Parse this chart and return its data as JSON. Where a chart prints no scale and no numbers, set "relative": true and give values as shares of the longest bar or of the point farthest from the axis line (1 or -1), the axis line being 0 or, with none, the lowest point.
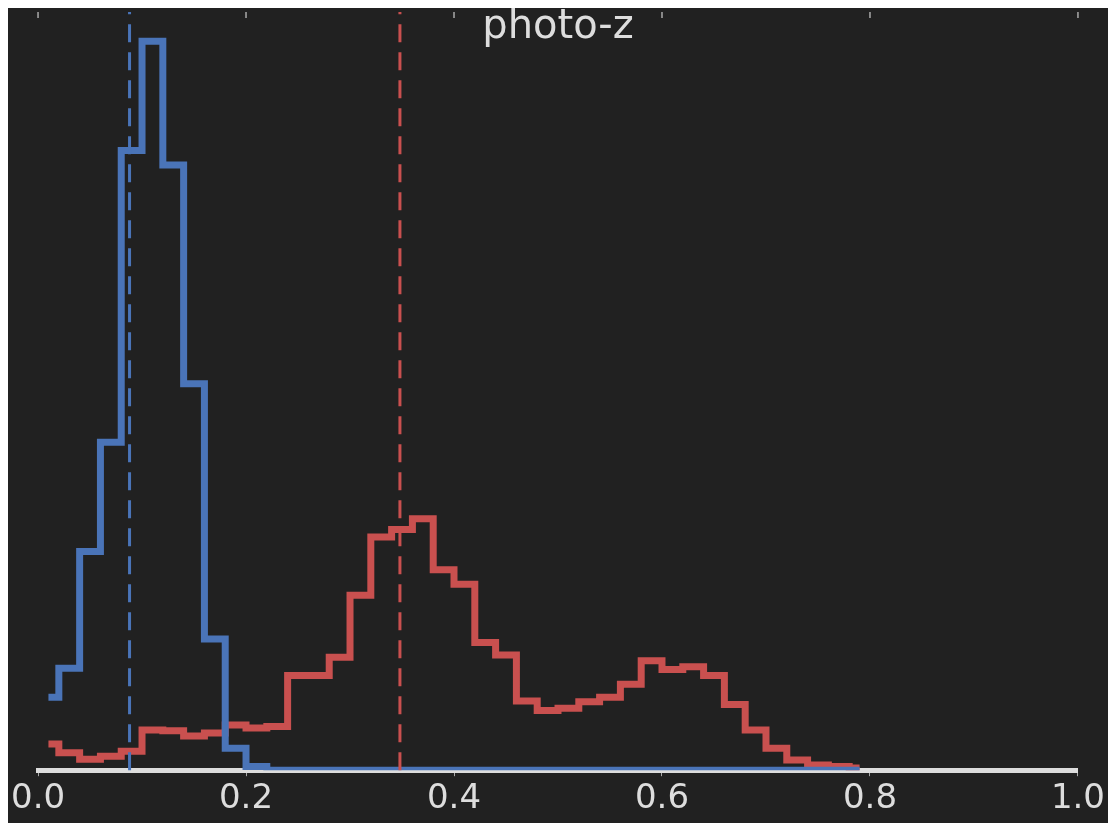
{
  "chart_data": {
    "type": "step",
    "title": "photo-z",
    "relative": true,
    "x": [
      0.01,
      0.03,
      0.05,
      0.07,
      0.09,
      0.11,
      0.13,
      0.15,
      0.17,
      0.19,
      0.21,
      0.23,
      0.25,
      0.27,
      0.29,
      0.31,
      0.33,
      0.35,
      0.37,
      0.39,
      0.41,
      0.43,
      0.45,
      0.47,
      0.49,
      0.51,
      0.53,
      0.55,
      0.57,
      0.59,
      0.61,
      0.63,
      0.65,
      0.67,
      0.69,
      0.71,
      0.73,
      0.75,
      0.77,
      0.79
    ],
    "series": [
      {
        "color": "#4a74b8",
        "values": [
          0.1,
          0.14,
          0.3,
          0.45,
          0.85,
          1,
          0.83,
          0.53,
          0.18,
          0.03,
          0.005,
          0,
          0,
          0,
          0,
          0,
          0,
          0,
          0,
          0,
          0,
          0,
          0,
          0,
          0,
          0,
          0,
          0,
          0,
          0,
          0,
          0,
          0,
          0,
          0,
          0,
          0,
          0,
          0,
          0
        ]
      },
      {
        "color": "#c9504f",
        "values": [
          0.036,
          0.024,
          0.015,
          0.019,
          0.026,
          0.055,
          0.054,
          0.047,
          0.051,
          0.062,
          0.058,
          0.06,
          0.13,
          0.13,
          0.155,
          0.24,
          0.32,
          0.33,
          0.345,
          0.275,
          0.255,
          0.175,
          0.158,
          0.095,
          0.082,
          0.085,
          0.094,
          0.1,
          0.118,
          0.15,
          0.138,
          0.142,
          0.13,
          0.09,
          0.055,
          0.03,
          0.014,
          0.007,
          0.005,
          0.003
        ]
      }
    ],
    "xlim": [
      0,
      1
    ],
    "xticks": [
      {
        "value": 0,
        "label": "0.0"
      },
      {
        "value": 0.2,
        "label": "0.2"
      },
      {
        "value": 0.4,
        "label": "0.4"
      },
      {
        "value": 0.6,
        "label": "0.6"
      },
      {
        "value": 0.8,
        "label": "0.8"
      },
      {
        "value": 1,
        "label": "1.0"
      }
    ],
    "ref_lines": [
      {
        "axis": "x",
        "value": 0.088,
        "color": "#4a74b8",
        "line_style": "dashed"
      },
      {
        "axis": "x",
        "value": 0.348,
        "color": "#c9504f",
        "line_style": "dashed"
      }
    ],
    "grid": false,
    "legend": false
  }
}
